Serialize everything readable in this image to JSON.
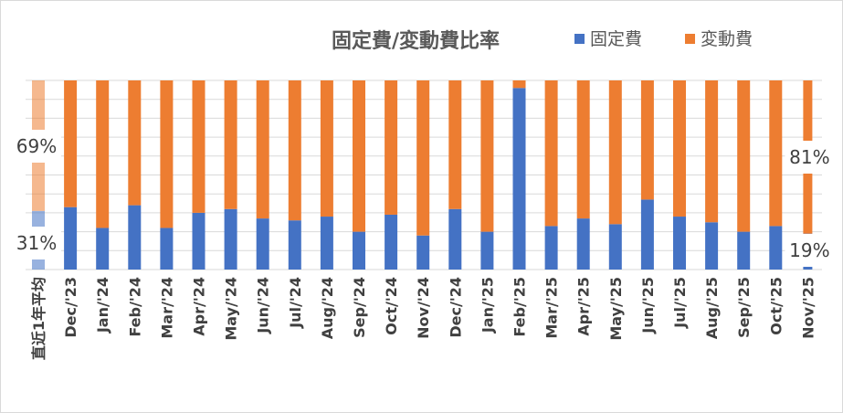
{
  "chart_data": {
    "type": "bar",
    "stacked": true,
    "percent_stacked": true,
    "title": "固定費/変動費比率",
    "legend": {
      "placement": "top-right",
      "items": [
        {
          "name": "固定費",
          "color": "#4472c4"
        },
        {
          "name": "変動費",
          "color": "#ed7d31"
        }
      ]
    },
    "categories": [
      "直近1年平均",
      "Dec/'23",
      "Jan/'24",
      "Feb/'24",
      "Mar/'24",
      "Apr/'24",
      "May/'24",
      "Jun/'24",
      "Jul/'24",
      "Aug/'24",
      "Sep/'24",
      "Oct/'24",
      "Nov/'24",
      "Dec/'24",
      "Jan/'25",
      "Feb/'25",
      "Mar/'25",
      "Apr/'25",
      "May/'25",
      "Jun/'25",
      "Jul/'25",
      "Aug/'25",
      "Sep/'25",
      "Oct/'25",
      "Nov/'25"
    ],
    "series": [
      {
        "name": "固定費",
        "color": "#4472c4",
        "values": [
          31,
          33,
          22,
          34,
          22,
          30,
          32,
          27,
          26,
          28,
          20,
          29,
          18,
          32,
          20,
          96,
          23,
          27,
          24,
          37,
          28,
          25,
          20,
          23,
          19
        ]
      },
      {
        "name": "変動費",
        "color": "#ed7d31",
        "values": [
          69,
          67,
          78,
          66,
          78,
          70,
          68,
          73,
          74,
          72,
          80,
          71,
          82,
          68,
          80,
          4,
          77,
          73,
          76,
          63,
          72,
          75,
          80,
          77,
          81
        ]
      }
    ],
    "highlighted": [
      {
        "category": "直近1年平均",
        "style": "faded"
      },
      {
        "category": "Nov/'25",
        "style": "thin"
      }
    ],
    "data_labels": [
      {
        "text": "69%",
        "category": "直近1年平均",
        "series": "変動費"
      },
      {
        "text": "31%",
        "category": "直近1年平均",
        "series": "固定費"
      },
      {
        "text": "81%",
        "category": "Nov/'25",
        "series": "変動費"
      },
      {
        "text": "19%",
        "category": "Nov/'25",
        "series": "固定費"
      }
    ],
    "ylim": [
      0,
      100
    ],
    "grid": true,
    "xlabel": "",
    "ylabel": ""
  }
}
